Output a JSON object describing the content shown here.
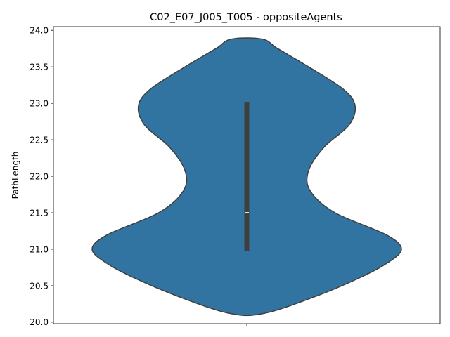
{
  "chart_data": {
    "type": "violin",
    "title": "C02_E07_J005_T005 - oppositeAgents",
    "xlabel": "",
    "ylabel": "PathLength",
    "ylim": [
      19.98,
      24.05
    ],
    "yticks": [
      "20.0",
      "20.5",
      "21.0",
      "21.5",
      "22.0",
      "22.5",
      "23.0",
      "23.5",
      "24.0"
    ],
    "ytick_values": [
      20.0,
      20.5,
      21.0,
      21.5,
      22.0,
      22.5,
      23.0,
      23.5,
      24.0
    ],
    "grid": false,
    "legend": "none",
    "violin": {
      "color": "#3274a1",
      "edge_color": "#3f3f3f",
      "y_min": 20.12,
      "y_max": 23.88,
      "density_profile": [
        {
          "y": 20.12,
          "w": 0.11
        },
        {
          "y": 20.35,
          "w": 0.44
        },
        {
          "y": 20.6,
          "w": 0.72
        },
        {
          "y": 20.8,
          "w": 0.9
        },
        {
          "y": 21.0,
          "w": 1.0
        },
        {
          "y": 21.2,
          "w": 0.9
        },
        {
          "y": 21.5,
          "w": 0.57
        },
        {
          "y": 21.8,
          "w": 0.41
        },
        {
          "y": 22.08,
          "w": 0.4
        },
        {
          "y": 22.4,
          "w": 0.5
        },
        {
          "y": 22.7,
          "w": 0.66
        },
        {
          "y": 22.97,
          "w": 0.7
        },
        {
          "y": 23.2,
          "w": 0.62
        },
        {
          "y": 23.5,
          "w": 0.4
        },
        {
          "y": 23.75,
          "w": 0.2
        },
        {
          "y": 23.88,
          "w": 0.1
        }
      ],
      "box": {
        "q1": 20.98,
        "median": 21.5,
        "q3": 23.02
      }
    }
  }
}
